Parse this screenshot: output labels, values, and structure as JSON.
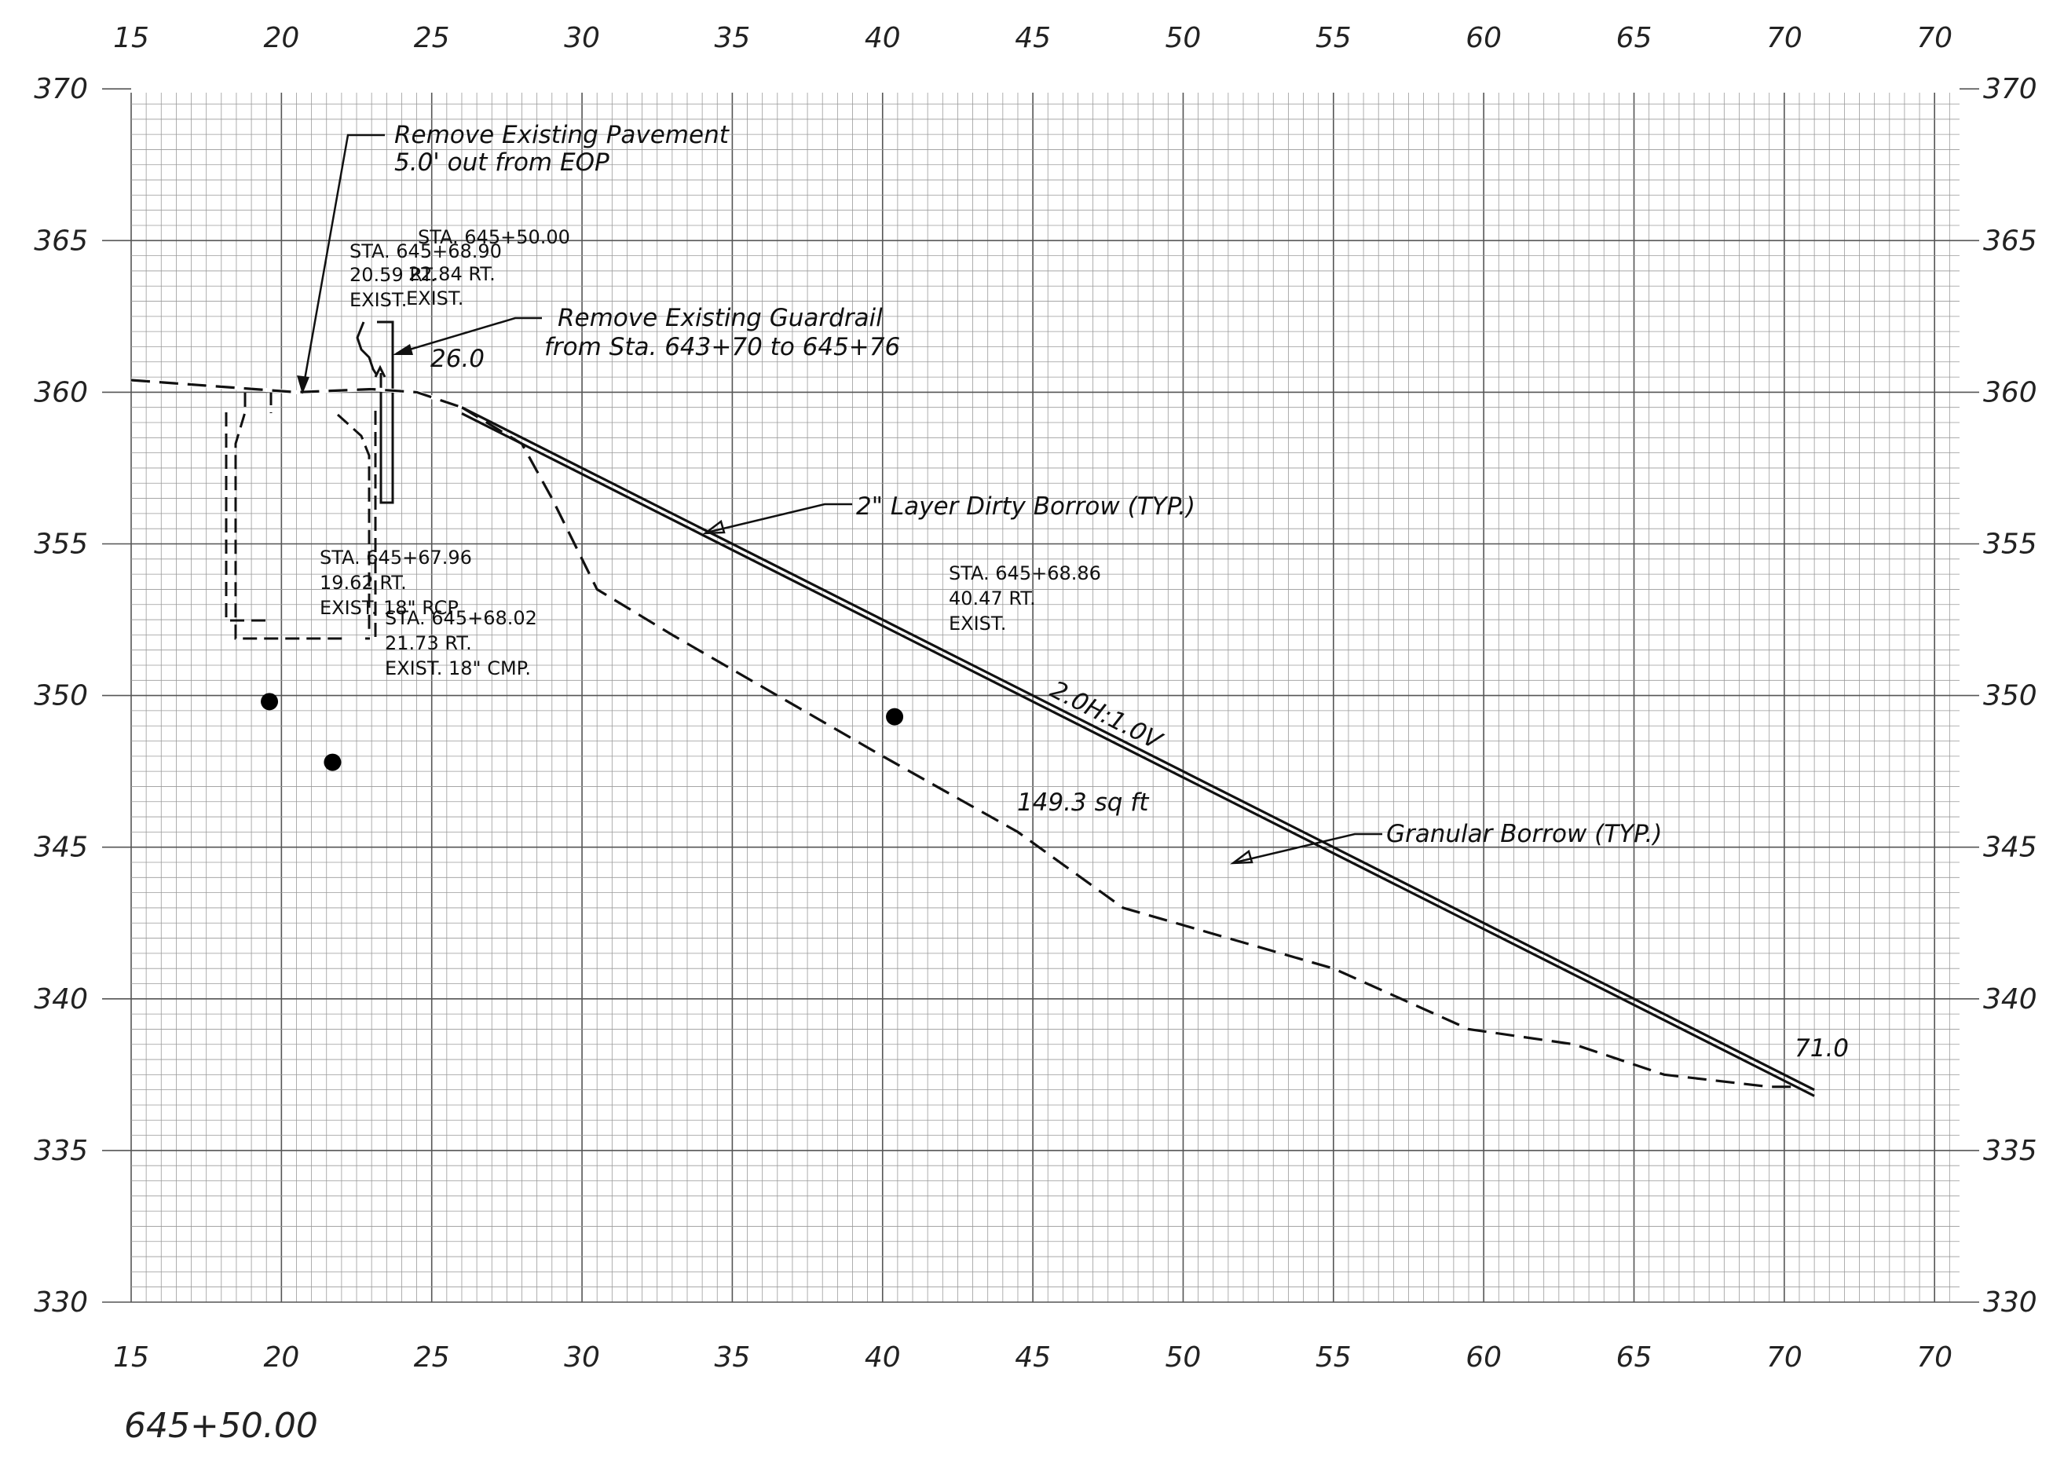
{
  "axes": {
    "x_min": 15,
    "x_max": 71,
    "y_min": 330,
    "y_max": 371,
    "x_ticks": [
      "15",
      "20",
      "25",
      "30",
      "35",
      "40",
      "45",
      "50",
      "55",
      "60",
      "65",
      "70",
      "70"
    ],
    "y_ticks": [
      "370",
      "365",
      "360",
      "355",
      "350",
      "345",
      "340",
      "335",
      "330"
    ]
  },
  "notes": {
    "pavement_1": "Remove Existing Pavement",
    "pavement_2": "5.0' out from EOP",
    "guardrail_1": "Remove Existing Guardrail",
    "guardrail_2": "from Sta. 643+70 to 645+76",
    "dirty_borrow": "2\" Layer Dirty Borrow (TYP.)",
    "granular_borrow": "Granular Borrow (TYP.)",
    "area": "149.3 sq ft",
    "slope": "2.0H:1.0V",
    "left_end": "26.0",
    "right_end": "71.0"
  },
  "station_labels": {
    "a": [
      "STA. 645+50.00",
      "22.84 RT.",
      "EXIST."
    ],
    "b": [
      "STA. 645+68.90",
      "20.59 RT.",
      "EXIST."
    ],
    "c": [
      "STA. 645+67.96",
      "19.62 RT.",
      "EXIST. 18\" RCP"
    ],
    "d": [
      "STA. 645+68.02",
      "21.73 RT.",
      "EXIST. 18\" CMP."
    ],
    "e": [
      "STA. 645+68.86",
      "40.47 RT.",
      "EXIST."
    ]
  },
  "chart_data": {
    "type": "line",
    "title": "645+50.00",
    "xlabel": "",
    "ylabel": "",
    "xlim": [
      15,
      71
    ],
    "ylim": [
      330,
      371
    ],
    "series": [
      {
        "values": [
          [
            15,
            360.4
          ],
          [
            20.5,
            360.0
          ],
          [
            23.0,
            360.1
          ],
          [
            24.5,
            360.0
          ],
          [
            26.0,
            359.5
          ],
          [
            28.0,
            358.5
          ],
          [
            34.0,
            355.5
          ],
          [
            40.0,
            352.5
          ],
          [
            50.0,
            347.5
          ],
          [
            60.0,
            342.5
          ],
          [
            71.0,
            337.0
          ]
        ]
      },
      {
        "values": [
          [
            26.0,
            359.3
          ],
          [
            34.0,
            355.3
          ],
          [
            40.0,
            352.3
          ],
          [
            50.0,
            347.3
          ],
          [
            60.0,
            342.3
          ],
          [
            71.0,
            336.8
          ]
        ]
      },
      {
        "values": [
          [
            26.0,
            359.5
          ],
          [
            28.0,
            358.3
          ],
          [
            29.0,
            356.5
          ],
          [
            30.5,
            353.5
          ],
          [
            33,
            352.0
          ],
          [
            36.5,
            350.0
          ],
          [
            40,
            348.0
          ],
          [
            44.5,
            345.5
          ],
          [
            48,
            343.0
          ],
          [
            55,
            341.0
          ],
          [
            59.5,
            339.0
          ],
          [
            63,
            338.5
          ],
          [
            66,
            337.5
          ],
          [
            69.5,
            337.1
          ],
          [
            70.5,
            337.1
          ]
        ]
      }
    ],
    "points": [
      [
        19.6,
        349.8
      ],
      [
        21.7,
        347.8
      ],
      [
        40.4,
        349.3
      ]
    ]
  }
}
